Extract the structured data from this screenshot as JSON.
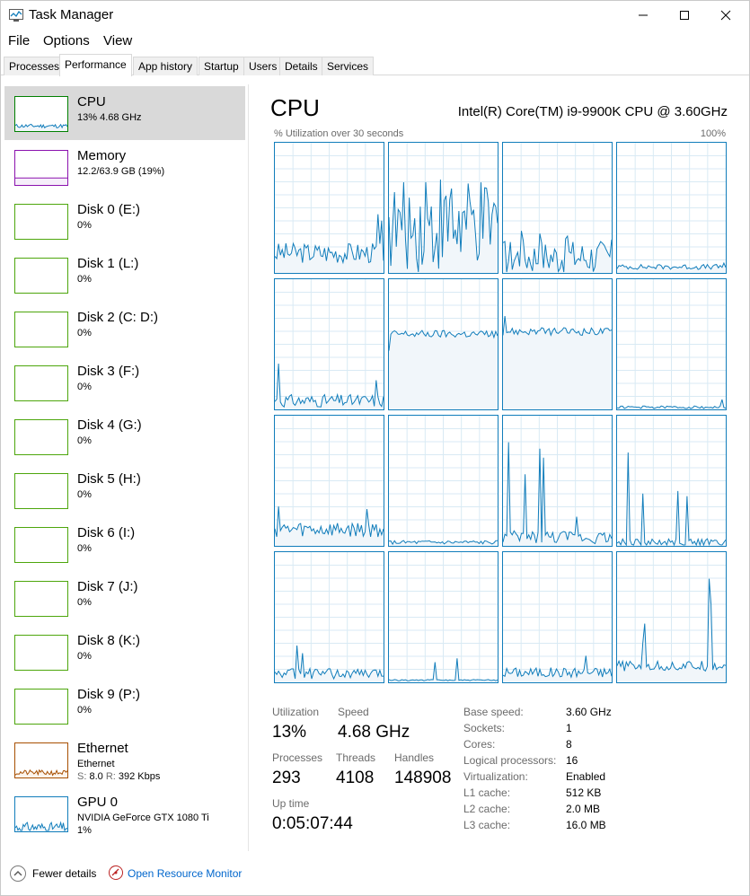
{
  "window": {
    "title": "Task Manager"
  },
  "menu": [
    "File",
    "Options",
    "View"
  ],
  "tabs": [
    "Processes",
    "Performance",
    "App history",
    "Startup",
    "Users",
    "Details",
    "Services"
  ],
  "sidebar": [
    {
      "name": "CPU",
      "sub": "13%  4.68 GHz",
      "color": "#117dbb",
      "level": 0.13
    },
    {
      "name": "Memory",
      "sub": "12.2/63.9 GB (19%)",
      "color": "#8b12ae",
      "level": 0.19
    },
    {
      "name": "Disk 0 (E:)",
      "sub": "0%",
      "color": "#4da60c",
      "level": 0
    },
    {
      "name": "Disk 1 (L:)",
      "sub": "0%",
      "color": "#4da60c",
      "level": 0
    },
    {
      "name": "Disk 2 (C: D:)",
      "sub": "0%",
      "color": "#4da60c",
      "level": 0
    },
    {
      "name": "Disk 3 (F:)",
      "sub": "0%",
      "color": "#4da60c",
      "level": 0
    },
    {
      "name": "Disk 4 (G:)",
      "sub": "0%",
      "color": "#4da60c",
      "level": 0
    },
    {
      "name": "Disk 5 (H:)",
      "sub": "0%",
      "color": "#4da60c",
      "level": 0
    },
    {
      "name": "Disk 6 (I:)",
      "sub": "0%",
      "color": "#4da60c",
      "level": 0
    },
    {
      "name": "Disk 7 (J:)",
      "sub": "0%",
      "color": "#4da60c",
      "level": 0
    },
    {
      "name": "Disk 8 (K:)",
      "sub": "0%",
      "color": "#4da60c",
      "level": 0
    },
    {
      "name": "Disk 9 (P:)",
      "sub": "0%",
      "color": "#4da60c",
      "level": 0
    }
  ],
  "ethernet": {
    "name": "Ethernet",
    "sub": "Ethernet",
    "s_label": "S:",
    "s_value": "8.0",
    "r_label": "R:",
    "r_value": "392 Kbps",
    "color": "#a74f01"
  },
  "gpu": {
    "name": "GPU 0",
    "sub": "NVIDIA GeForce GTX 1080 Ti",
    "sub2": "1%",
    "color": "#117dbb"
  },
  "main": {
    "title": "CPU",
    "model": "Intel(R) Core(TM) i9-9900K CPU @ 3.60GHz",
    "util_label": "% Utilization over 30 seconds",
    "util_max": "100%",
    "accent": "#117dbb",
    "fill": "#f1f6fa",
    "grid_line": "#d9eaf4"
  },
  "cores": [
    {
      "base": 0.15,
      "noise": 0.08,
      "spikes": [
        [
          56,
          0.45
        ],
        [
          58,
          0.4
        ]
      ]
    },
    {
      "base": 0.35,
      "noise": 0.35,
      "spikes": [
        [
          20,
          0.7
        ],
        [
          28,
          0.72
        ],
        [
          34,
          0.65
        ]
      ]
    },
    {
      "base": 0.12,
      "noise": 0.14,
      "spikes": [
        [
          10,
          0.32
        ],
        [
          20,
          0.3
        ],
        [
          35,
          0.28
        ]
      ]
    },
    {
      "base": 0.04,
      "noise": 0.02,
      "spikes": [
        [
          58,
          0.07
        ]
      ]
    },
    {
      "base": 0.06,
      "noise": 0.05,
      "spikes": [
        [
          2,
          0.35
        ],
        [
          55,
          0.22
        ]
      ]
    },
    {
      "base": 0.58,
      "noise": 0.03,
      "spikes": [
        [
          0,
          0.45
        ]
      ]
    },
    {
      "base": 0.6,
      "noise": 0.03,
      "spikes": [
        [
          1,
          0.72
        ]
      ]
    },
    {
      "base": 0.01,
      "noise": 0.01,
      "spikes": [
        [
          57,
          0.07
        ]
      ]
    },
    {
      "base": 0.12,
      "noise": 0.06,
      "spikes": [
        [
          2,
          0.3
        ],
        [
          50,
          0.28
        ]
      ]
    },
    {
      "base": 0.02,
      "noise": 0.015,
      "spikes": []
    },
    {
      "base": 0.06,
      "noise": 0.05,
      "spikes": [
        [
          3,
          0.8
        ],
        [
          12,
          0.55
        ],
        [
          20,
          0.75
        ],
        [
          22,
          0.68
        ],
        [
          40,
          0.22
        ]
      ]
    },
    {
      "base": 0.02,
      "noise": 0.03,
      "spikes": [
        [
          6,
          0.72
        ],
        [
          14,
          0.4
        ],
        [
          33,
          0.42
        ],
        [
          38,
          0.38
        ]
      ]
    },
    {
      "base": 0.06,
      "noise": 0.04,
      "spikes": [
        [
          12,
          0.28
        ],
        [
          15,
          0.22
        ]
      ]
    },
    {
      "base": 0.01,
      "noise": 0.005,
      "spikes": [
        [
          25,
          0.15
        ],
        [
          37,
          0.18
        ]
      ]
    },
    {
      "base": 0.07,
      "noise": 0.04,
      "spikes": [
        [
          45,
          0.2
        ]
      ]
    },
    {
      "base": 0.12,
      "noise": 0.04,
      "spikes": [
        [
          15,
          0.45
        ],
        [
          14,
          0.3
        ],
        [
          50,
          0.8
        ],
        [
          51,
          0.6
        ]
      ]
    }
  ],
  "stats": {
    "utilization_label": "Utilization",
    "utilization": "13%",
    "speed_label": "Speed",
    "speed": "4.68 GHz",
    "processes_label": "Processes",
    "processes": "293",
    "threads_label": "Threads",
    "threads": "4108",
    "handles_label": "Handles",
    "handles": "148908",
    "uptime_label": "Up time",
    "uptime": "0:05:07:44"
  },
  "info": [
    {
      "label": "Base speed:",
      "value": "3.60 GHz"
    },
    {
      "label": "Sockets:",
      "value": "1"
    },
    {
      "label": "Cores:",
      "value": "8"
    },
    {
      "label": "Logical processors:",
      "value": "16"
    },
    {
      "label": "Virtualization:",
      "value": "Enabled"
    },
    {
      "label": "L1 cache:",
      "value": "512 KB"
    },
    {
      "label": "L2 cache:",
      "value": "2.0 MB"
    },
    {
      "label": "L3 cache:",
      "value": "16.0 MB"
    }
  ],
  "footer": {
    "fewer": "Fewer details",
    "monitor": "Open Resource Monitor"
  }
}
